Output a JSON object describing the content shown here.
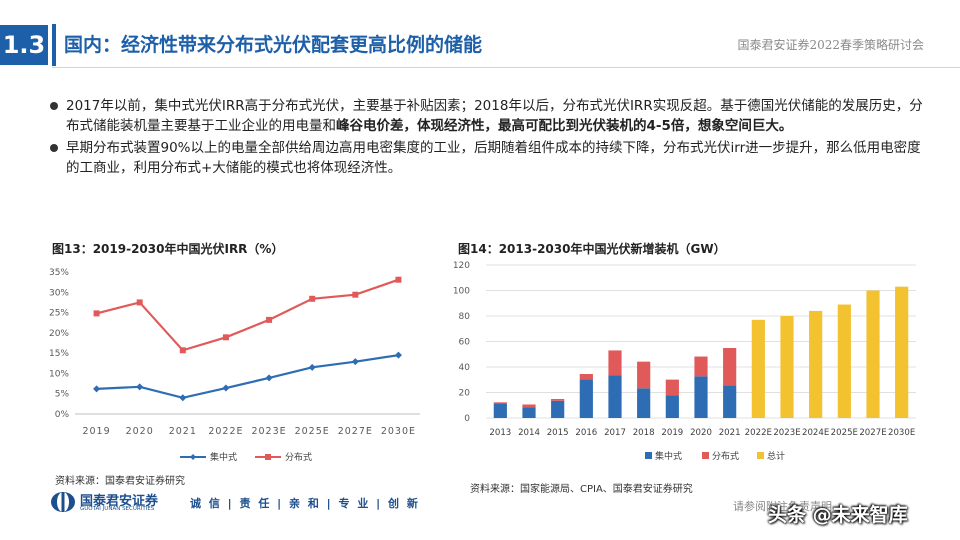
{
  "header": {
    "section_number": "1.3",
    "title": "国内：经济性带来分布式光伏配套更高比例的储能",
    "conference": "国泰君安证券2022春季策略研讨会"
  },
  "bullets": [
    {
      "text_plain": "2017年以前，集中式光伏IRR高于分布式光伏，主要基于补贴因素；2018年以后，分布式光伏IRR实现反超。基于德国光伏储能的发展历史，分布式储能装机量主要基于工业企业的用电量和",
      "text_bold": "峰谷电价差，体现经济性，最高可配比到光伏装机的4-5倍，想象空间巨大。"
    },
    {
      "text_plain": "早期分布式装置90%以上的电量全部供给周边高用电密集度的工业，后期随着组件成本的持续下降，分布式光伏irr进一步提升，那么低用电密度的工商业，利用分布式+大储能的模式也将体现经济性。",
      "text_bold": ""
    }
  ],
  "figures": {
    "left_title": "图13：2019-2030年中国光伏IRR（%）",
    "left_source": "资料来源：国泰君安证券研究",
    "right_title": "图14：2013-2030年中国光伏新增装机（GW）",
    "right_source": "资料来源：国家能源局、CPIA、国泰君安证券研究"
  },
  "chart_data": [
    {
      "type": "line",
      "title": "图13：2019-2030年中国光伏IRR（%）",
      "categories": [
        "2019",
        "2020",
        "2021",
        "2022E",
        "2023E",
        "2025E",
        "2027E",
        "2030E"
      ],
      "y_ticks": [
        "0%",
        "5%",
        "10%",
        "15%",
        "20%",
        "25%",
        "30%",
        "35%"
      ],
      "ylim": [
        0,
        35
      ],
      "series": [
        {
          "name": "集中式",
          "color": "#2e6db4",
          "values": [
            6.2,
            6.7,
            4.0,
            6.4,
            8.9,
            11.5,
            12.9,
            14.5
          ]
        },
        {
          "name": "分布式",
          "color": "#e05a5a",
          "values": [
            24.8,
            27.5,
            15.7,
            18.9,
            23.2,
            28.4,
            29.4,
            33.1
          ]
        }
      ],
      "legend": "bottom"
    },
    {
      "type": "bar",
      "title": "图14：2013-2030年中国光伏新增装机（GW）",
      "categories": [
        "2013",
        "2014",
        "2015",
        "2016",
        "2017",
        "2018",
        "2019",
        "2020",
        "2021",
        "2022E",
        "2023E",
        "2024E",
        "2025E",
        "2027E",
        "2030E"
      ],
      "y_ticks": [
        "0",
        "20",
        "40",
        "60",
        "80",
        "100",
        "120"
      ],
      "ylim": [
        0,
        120
      ],
      "stacked": true,
      "series": [
        {
          "name": "集中式",
          "color": "#2e6db4",
          "values": [
            11.5,
            8.5,
            13.5,
            30.3,
            33.6,
            23.3,
            17.9,
            32.7,
            25.6,
            0,
            0,
            0,
            0,
            0,
            0
          ]
        },
        {
          "name": "分布式",
          "color": "#e05a5a",
          "values": [
            0.8,
            2.1,
            1.4,
            4.2,
            19.4,
            20.9,
            12.2,
            15.5,
            29.3,
            0,
            0,
            0,
            0,
            0,
            0
          ]
        },
        {
          "name": "总计",
          "color": "#f2c230",
          "values": [
            0,
            0,
            0,
            0,
            0,
            0,
            0,
            0,
            0,
            77,
            80,
            84,
            89,
            100,
            103
          ]
        }
      ],
      "legend": "bottom"
    }
  ],
  "footer": {
    "logo_cn": "国泰君安证券",
    "logo_en": "GUOTAI JUNAN SECURITIES",
    "motto": "诚 信 | 责 任 | 亲 和 | 专 业 | 创 新",
    "disclaimer": "请参阅附注免责声明",
    "watermark": "头条 @未来智库"
  },
  "colors": {
    "brand_blue": "#1d5fa8"
  }
}
